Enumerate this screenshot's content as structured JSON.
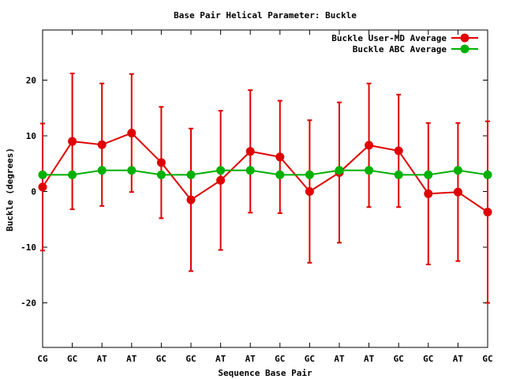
{
  "chart_data": {
    "type": "line",
    "title": "Base Pair Helical Parameter: Buckle",
    "xlabel": "Sequence Base Pair",
    "ylabel": "Buckle (degrees)",
    "categories": [
      "CG",
      "GC",
      "AT",
      "AT",
      "GC",
      "GC",
      "AT",
      "AT",
      "GC",
      "GC",
      "AT",
      "AT",
      "GC",
      "GC",
      "AT",
      "GC"
    ],
    "ylim": [
      -28,
      29
    ],
    "yticks": [
      -20,
      -10,
      0,
      10,
      20
    ],
    "ytick_labels": [
      "-20",
      "-10",
      "0",
      "10",
      "20"
    ],
    "grid": false,
    "legend_position": "top-right",
    "series": [
      {
        "name": "Buckle User-MD Average",
        "color": "#e00000",
        "values": [
          0.8,
          9.0,
          8.4,
          10.5,
          5.2,
          -1.5,
          2.0,
          7.2,
          6.2,
          0.0,
          3.4,
          8.3,
          7.3,
          -0.4,
          -0.1,
          -3.7
        ],
        "error": [
          11.4,
          12.2,
          11.0,
          10.6,
          10.0,
          12.8,
          12.5,
          11.0,
          10.1,
          12.8,
          12.6,
          11.1,
          10.1,
          12.7,
          12.4,
          16.3
        ]
      },
      {
        "name": "Buckle ABC Average",
        "color": "#00b000",
        "values": [
          3.0,
          3.0,
          3.8,
          3.8,
          3.0,
          3.0,
          3.8,
          3.8,
          3.0,
          3.0,
          3.8,
          3.8,
          3.0,
          3.0,
          3.8,
          3.0
        ]
      }
    ]
  }
}
